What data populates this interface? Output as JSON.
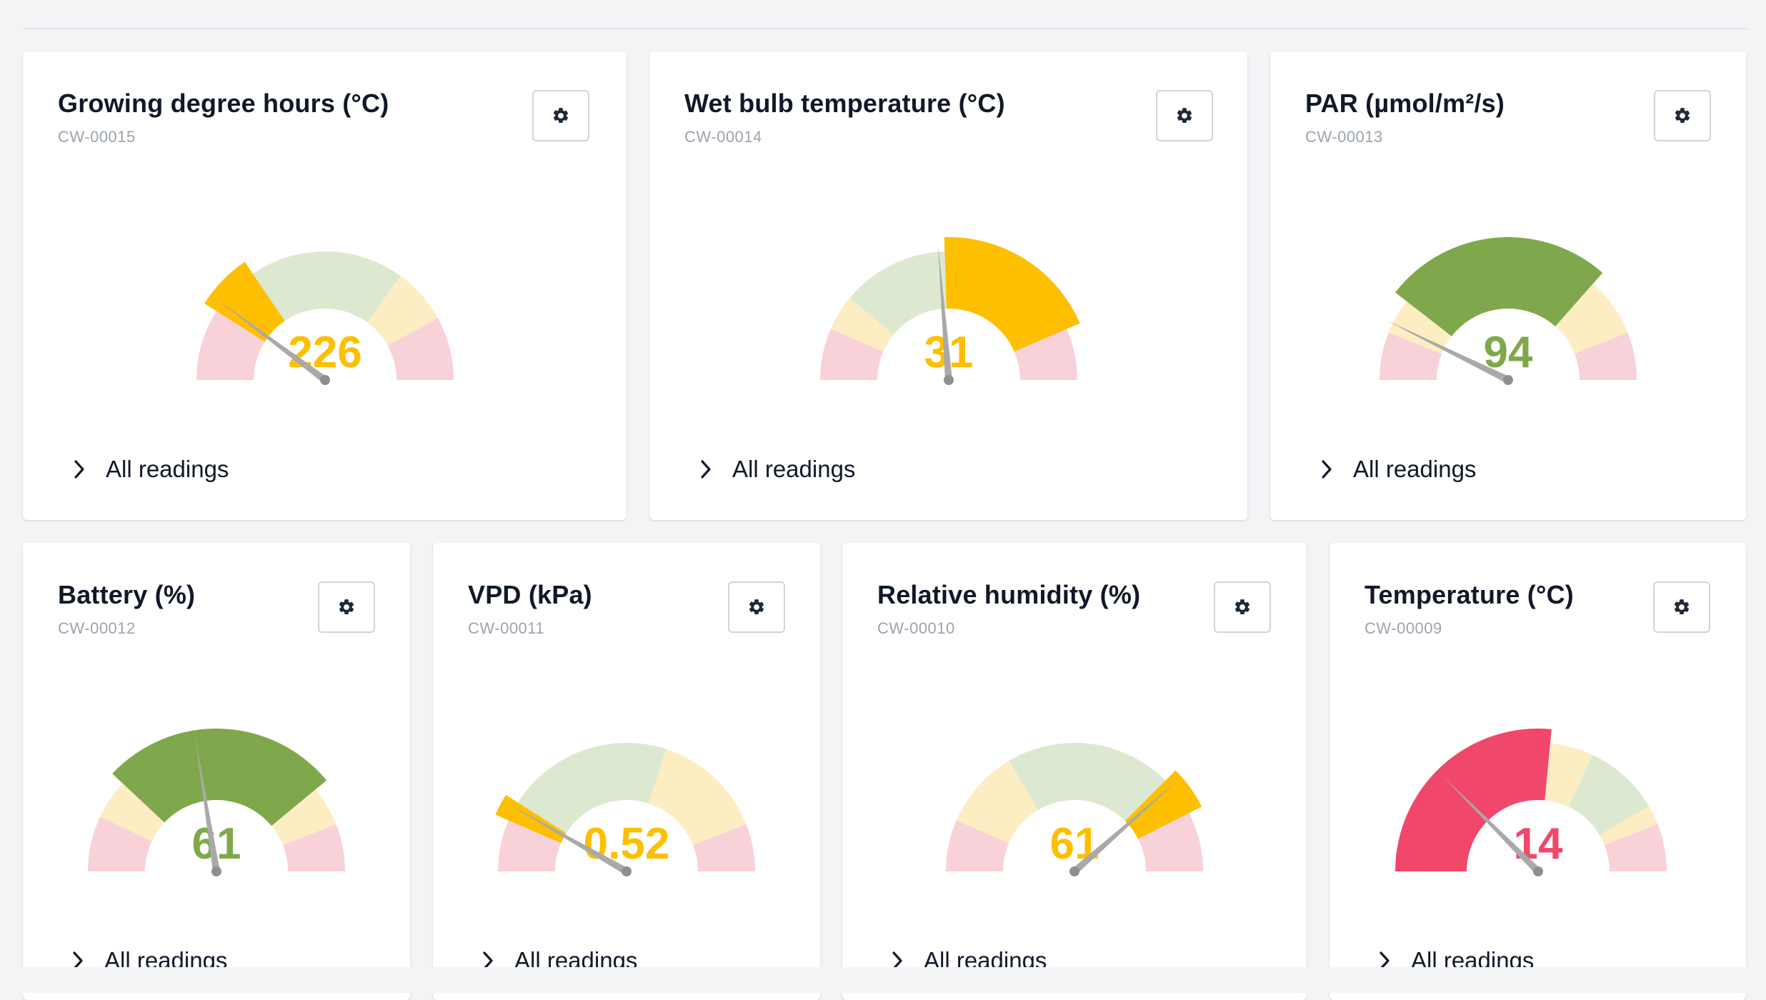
{
  "all_readings_label": "All readings",
  "colors": {
    "red": "#f0476a",
    "pink": "#f9d1d9",
    "yellow": "#fdbf00",
    "cream": "#fdedc3",
    "green": "#7fa84c",
    "palegreen": "#dde8d0",
    "needle": "#a9a9a9",
    "gear": "#1f2937"
  },
  "cards": [
    {
      "title": "Growing degree hours (°C)",
      "id": "CW-00015",
      "value_label": "226",
      "value_color": "#fdbf00",
      "needle_fraction": 0.204,
      "segments": [
        {
          "to": 0.18,
          "color": "pink"
        },
        {
          "to": 0.31,
          "color": "yellow"
        },
        {
          "to": 0.7,
          "color": "palegreen"
        },
        {
          "to": 0.84,
          "color": "cream"
        },
        {
          "to": 1.0,
          "color": "pink"
        }
      ],
      "highlight": 1
    },
    {
      "title": "Wet bulb temperature (°C)",
      "id": "CW-00014",
      "value_label": "31",
      "value_color": "#fdbf00",
      "needle_fraction": 0.475,
      "segments": [
        {
          "to": 0.13,
          "color": "pink"
        },
        {
          "to": 0.22,
          "color": "cream"
        },
        {
          "to": 0.49,
          "color": "palegreen"
        },
        {
          "to": 0.87,
          "color": "yellow"
        },
        {
          "to": 1.0,
          "color": "pink"
        }
      ],
      "highlight": 3
    },
    {
      "title": "PAR (µmol/m²/s)",
      "id": "CW-00013",
      "value_label": "94",
      "value_color": "#7fa84c",
      "needle_fraction": 0.145,
      "segments": [
        {
          "to": 0.12,
          "color": "pink"
        },
        {
          "to": 0.21,
          "color": "cream"
        },
        {
          "to": 0.73,
          "color": "green"
        },
        {
          "to": 0.88,
          "color": "cream"
        },
        {
          "to": 1.0,
          "color": "pink"
        }
      ],
      "highlight": 2
    },
    {
      "title": "Battery (%)",
      "id": "CW-00012",
      "value_label": "61",
      "value_color": "#7fa84c",
      "needle_fraction": 0.45,
      "segments": [
        {
          "to": 0.14,
          "color": "pink"
        },
        {
          "to": 0.24,
          "color": "cream"
        },
        {
          "to": 0.78,
          "color": "green"
        },
        {
          "to": 0.88,
          "color": "cream"
        },
        {
          "to": 1.0,
          "color": "pink"
        }
      ],
      "highlight": 2
    },
    {
      "title": "VPD (kPa)",
      "id": "CW-00011",
      "value_label": "0.52",
      "value_color": "#fdbf00",
      "needle_fraction": 0.165,
      "segments": [
        {
          "to": 0.13,
          "color": "pink"
        },
        {
          "to": 0.18,
          "color": "yellow"
        },
        {
          "to": 0.6,
          "color": "palegreen"
        },
        {
          "to": 0.88,
          "color": "cream"
        },
        {
          "to": 1.0,
          "color": "pink"
        }
      ],
      "highlight": 1
    },
    {
      "title": "Relative humidity (%)",
      "id": "CW-00010",
      "value_label": "61",
      "value_color": "#fdbf00",
      "needle_fraction": 0.77,
      "segments": [
        {
          "to": 0.13,
          "color": "pink"
        },
        {
          "to": 0.33,
          "color": "cream"
        },
        {
          "to": 0.75,
          "color": "palegreen"
        },
        {
          "to": 0.85,
          "color": "yellow"
        },
        {
          "to": 1.0,
          "color": "pink"
        }
      ],
      "highlight": 3
    },
    {
      "title": "Temperature (°C)",
      "id": "CW-00009",
      "value_label": "14",
      "value_color": "#f0476a",
      "needle_fraction": 0.25,
      "segments": [
        {
          "to": 0.53,
          "color": "red"
        },
        {
          "to": 0.64,
          "color": "cream"
        },
        {
          "to": 0.83,
          "color": "palegreen"
        },
        {
          "to": 0.88,
          "color": "cream"
        },
        {
          "to": 1.0,
          "color": "pink"
        }
      ],
      "highlight": 0
    }
  ]
}
